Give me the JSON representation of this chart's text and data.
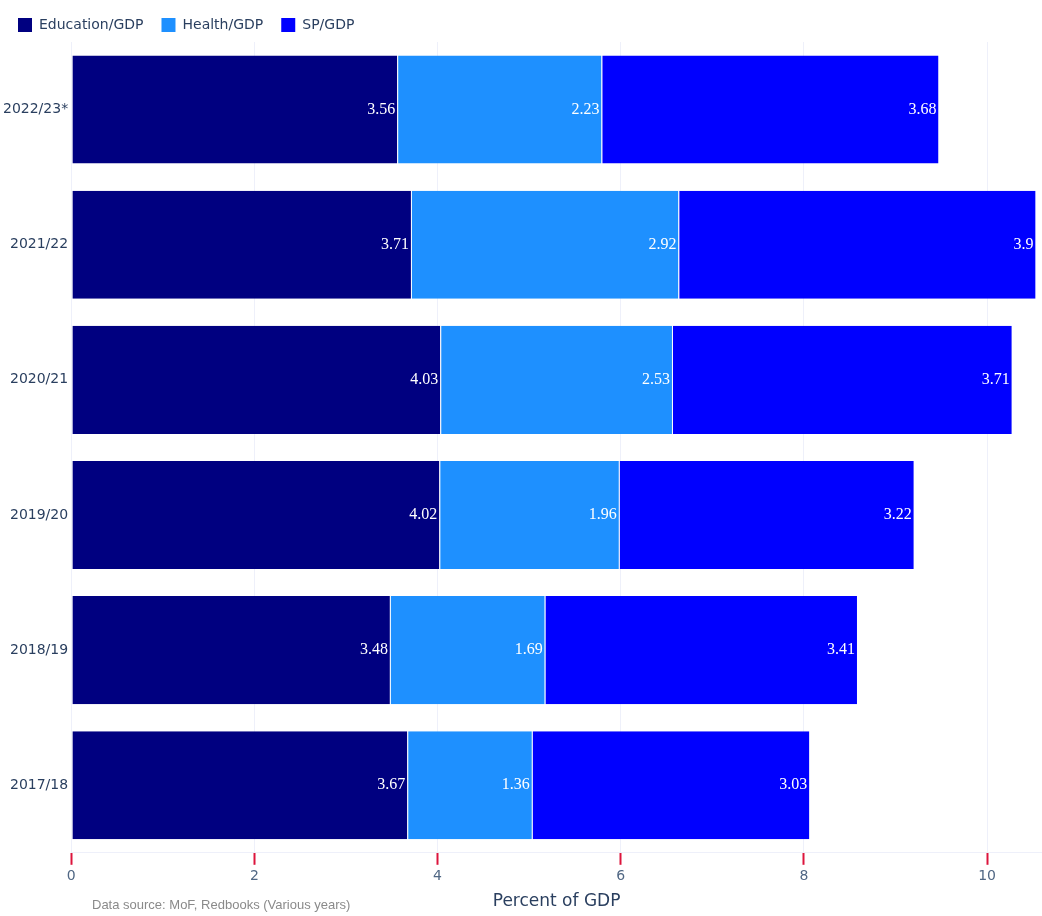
{
  "chart_data": {
    "type": "bar",
    "orientation": "horizontal",
    "stacked": true,
    "categories": [
      "2022/23*",
      "2021/22",
      "2020/21",
      "2019/20",
      "2018/19",
      "2017/18"
    ],
    "series": [
      {
        "name": "Education/GDP",
        "color": "#000080",
        "values": [
          3.56,
          3.71,
          4.03,
          4.02,
          3.48,
          3.67
        ]
      },
      {
        "name": "Health/GDP",
        "color": "#1e90ff",
        "values": [
          2.23,
          2.92,
          2.53,
          1.96,
          1.69,
          1.36
        ]
      },
      {
        "name": "SP/GDP",
        "color": "#0000ff",
        "values": [
          3.68,
          3.9,
          3.71,
          3.22,
          3.41,
          3.03
        ]
      }
    ],
    "xlim": [
      0,
      10.6
    ],
    "xticks": [
      0,
      2,
      4,
      6,
      8,
      10
    ],
    "xlabel": "Percent of GDP",
    "grid": "x",
    "legend": "top left",
    "data_labels": true,
    "annotations": [
      "Data source: MoF, Redbooks (Various years)"
    ]
  }
}
